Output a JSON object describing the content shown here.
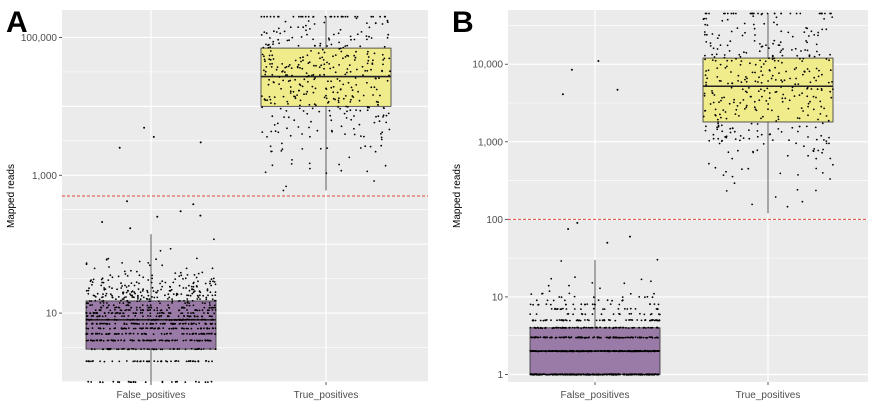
{
  "figure": {
    "panel_labels": [
      "A",
      "B"
    ]
  },
  "colors": {
    "panel_bg": "#ebebeb",
    "grid": "#ffffff",
    "false_box": "#9a7aa6",
    "true_box": "#f0ec8c",
    "threshold_line": "#e0463c",
    "points": "#000000"
  },
  "chart_data": [
    {
      "type": "box",
      "panel": "A",
      "ylabel": "Mapped reads",
      "yscale": "log10",
      "ylim": [
        1,
        250000
      ],
      "ytick_values": [
        10,
        1000,
        100000
      ],
      "ytick_labels": [
        "10",
        "1,000",
        "100,000"
      ],
      "categories": [
        "False_positives",
        "True_positives"
      ],
      "threshold": 500,
      "series": [
        {
          "name": "False_positives",
          "min": 1,
          "q1": 3,
          "median": 8,
          "q3": 15,
          "max": 140,
          "outliers": [
            3000,
            3600,
            4900,
            2500,
            380,
            300,
            250,
            210,
            170,
            420,
            260
          ]
        },
        {
          "name": "True_positives",
          "min": 600,
          "q1": 10000,
          "median": 27000,
          "q3": 70000,
          "max": 200000,
          "outliers": []
        }
      ]
    },
    {
      "type": "box",
      "panel": "B",
      "ylabel": "Mapped reads",
      "yscale": "log10",
      "ylim": [
        0.8,
        50000
      ],
      "ytick_values": [
        1,
        10,
        100,
        1000,
        10000
      ],
      "ytick_labels": [
        "1",
        "10",
        "100",
        "1,000",
        "10,000"
      ],
      "categories": [
        "False_positives",
        "True_positives"
      ],
      "threshold": 100,
      "series": [
        {
          "name": "False_positives",
          "min": 1,
          "q1": 1,
          "median": 2,
          "q3": 4,
          "max": 30,
          "outliers": [
            8500,
            11000,
            4700,
            4100,
            90,
            75,
            60,
            50
          ]
        },
        {
          "name": "True_positives",
          "min": 120,
          "q1": 1800,
          "median": 5200,
          "q3": 12000,
          "max": 45000,
          "outliers": []
        }
      ]
    }
  ]
}
